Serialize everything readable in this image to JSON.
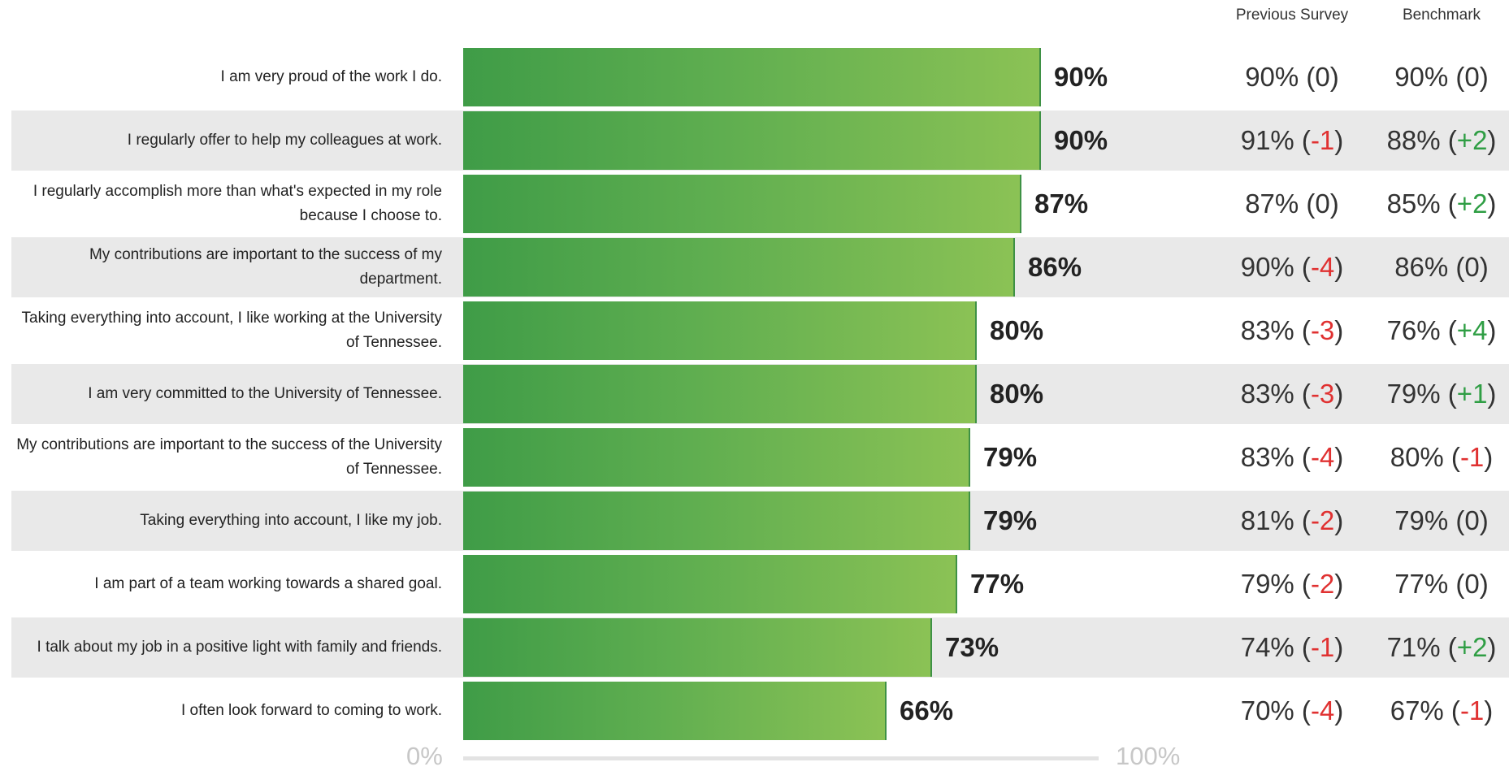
{
  "headers": {
    "previous": "Previous Survey",
    "benchmark": "Benchmark"
  },
  "colors": {
    "bar_start": "#3f9c47",
    "bar_end": "#8bc255",
    "negative": "#e03131",
    "positive": "#2f9e44",
    "row_shade": "#e9e9e9"
  },
  "chart_data": {
    "type": "bar",
    "orientation": "horizontal",
    "xlim": [
      0,
      100
    ],
    "axis": {
      "min_label": "0%",
      "max_label": "100%"
    },
    "grid": false,
    "legend": "none",
    "rows": [
      {
        "statement": "I am very proud of the work I do.",
        "value": 90,
        "value_label": "90%",
        "previous": "90%",
        "previous_diff": "0",
        "benchmark": "90%",
        "benchmark_diff": "0"
      },
      {
        "statement": "I regularly offer to help my colleagues at work.",
        "value": 90,
        "value_label": "90%",
        "previous": "91%",
        "previous_diff": "-1",
        "benchmark": "88%",
        "benchmark_diff": "+2"
      },
      {
        "statement": "I regularly accomplish more than what's expected in my role because I choose to.",
        "value": 87,
        "value_label": "87%",
        "previous": "87%",
        "previous_diff": "0",
        "benchmark": "85%",
        "benchmark_diff": "+2"
      },
      {
        "statement": "My contributions are important to the success of my department.",
        "value": 86,
        "value_label": "86%",
        "previous": "90%",
        "previous_diff": "-4",
        "benchmark": "86%",
        "benchmark_diff": "0"
      },
      {
        "statement": "Taking everything into account, I like working at the University of Tennessee.",
        "value": 80,
        "value_label": "80%",
        "previous": "83%",
        "previous_diff": "-3",
        "benchmark": "76%",
        "benchmark_diff": "+4"
      },
      {
        "statement": "I am very committed to the University of Tennessee.",
        "value": 80,
        "value_label": "80%",
        "previous": "83%",
        "previous_diff": "-3",
        "benchmark": "79%",
        "benchmark_diff": "+1"
      },
      {
        "statement": "My contributions are important to the success of the University of Tennessee.",
        "value": 79,
        "value_label": "79%",
        "previous": "83%",
        "previous_diff": "-4",
        "benchmark": "80%",
        "benchmark_diff": "-1"
      },
      {
        "statement": "Taking everything into account, I like my job.",
        "value": 79,
        "value_label": "79%",
        "previous": "81%",
        "previous_diff": "-2",
        "benchmark": "79%",
        "benchmark_diff": "0"
      },
      {
        "statement": "I am part of a team working towards a shared goal.",
        "value": 77,
        "value_label": "77%",
        "previous": "79%",
        "previous_diff": "-2",
        "benchmark": "77%",
        "benchmark_diff": "0"
      },
      {
        "statement": "I talk about my job in a positive light with family and friends.",
        "value": 73,
        "value_label": "73%",
        "previous": "74%",
        "previous_diff": "-1",
        "benchmark": "71%",
        "benchmark_diff": "+2"
      },
      {
        "statement": "I often look forward to coming to work.",
        "value": 66,
        "value_label": "66%",
        "previous": "70%",
        "previous_diff": "-4",
        "benchmark": "67%",
        "benchmark_diff": "-1"
      }
    ]
  }
}
